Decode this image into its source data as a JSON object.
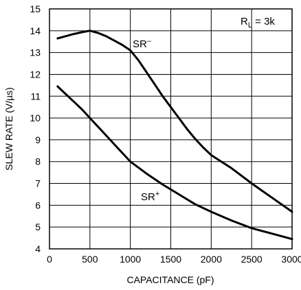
{
  "chart_data": {
    "type": "line",
    "title": "",
    "xlabel": "CAPACITANCE (pF)",
    "ylabel": "SLEW RATE (V/µs)",
    "xlim": [
      0,
      3000
    ],
    "ylim": [
      4,
      15
    ],
    "x_ticks": [
      "0",
      "500",
      "1000",
      "1500",
      "2000",
      "2500",
      "3000"
    ],
    "y_ticks": [
      "4",
      "5",
      "6",
      "7",
      "8",
      "9",
      "10",
      "11",
      "12",
      "13",
      "14",
      "15"
    ],
    "grid": true,
    "annotations": {
      "condition": {
        "main": "R",
        "sub": "L",
        "rest": " = 3k"
      },
      "sr_minus": {
        "main": "SR",
        "sup": "–"
      },
      "sr_plus": {
        "main": "SR",
        "sup": "+"
      }
    },
    "series": [
      {
        "name": "SR–",
        "x": [
          100,
          200,
          300,
          400,
          500,
          600,
          700,
          800,
          900,
          1000,
          1100,
          1200,
          1300,
          1400,
          1500,
          1600,
          1700,
          1800,
          1900,
          2000,
          2250,
          2500,
          2750,
          3000
        ],
        "y": [
          13.65,
          13.75,
          13.85,
          13.93,
          14.0,
          13.9,
          13.75,
          13.55,
          13.35,
          13.1,
          12.65,
          12.1,
          11.55,
          11.0,
          10.5,
          10.0,
          9.5,
          9.05,
          8.65,
          8.3,
          7.7,
          7.0,
          6.35,
          5.7
        ]
      },
      {
        "name": "SR+",
        "x": [
          100,
          200,
          300,
          400,
          500,
          600,
          700,
          800,
          900,
          1000,
          1200,
          1400,
          1600,
          1800,
          2000,
          2250,
          2500,
          2750,
          3000
        ],
        "y": [
          11.45,
          11.1,
          10.75,
          10.4,
          10.0,
          9.6,
          9.2,
          8.8,
          8.4,
          8.0,
          7.45,
          6.95,
          6.5,
          6.05,
          5.7,
          5.3,
          4.95,
          4.7,
          4.45
        ]
      }
    ]
  }
}
